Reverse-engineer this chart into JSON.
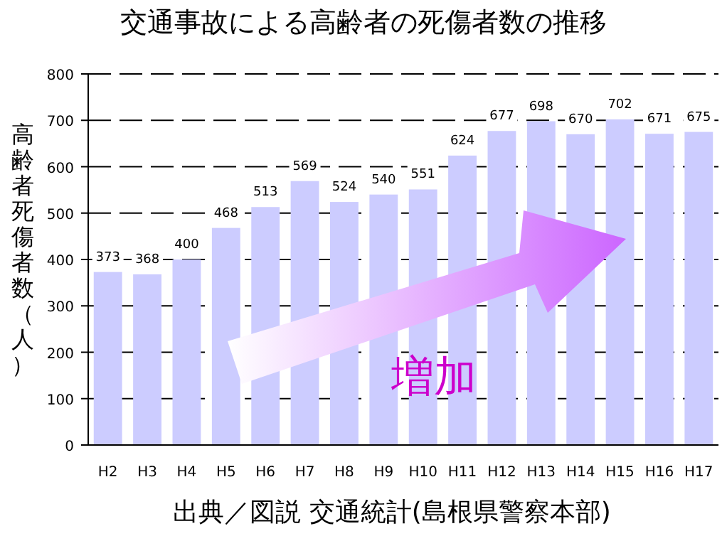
{
  "chart_data": {
    "type": "bar",
    "title": "交通事故による高齢者の死傷者数の推移",
    "ylabel": "高齢者死傷者数（人）",
    "categories": [
      "H2",
      "H3",
      "H4",
      "H5",
      "H6",
      "H7",
      "H8",
      "H9",
      "H10",
      "H11",
      "H12",
      "H13",
      "H14",
      "H15",
      "H16",
      "H17"
    ],
    "values": [
      373,
      368,
      400,
      468,
      513,
      569,
      524,
      540,
      551,
      624,
      677,
      698,
      670,
      702,
      671,
      675
    ],
    "color": "#ccccff",
    "ylim": [
      0,
      800
    ],
    "yticks": [
      0,
      100,
      200,
      300,
      400,
      500,
      600,
      700,
      800
    ],
    "grid": "y",
    "data_labels": true,
    "annotations": [
      "増加",
      "出典／図説 交通統計(島根県警察本部)"
    ]
  }
}
